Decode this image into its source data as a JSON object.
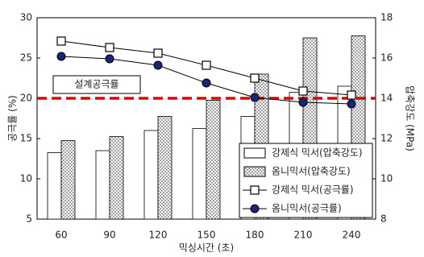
{
  "chart_data": {
    "type": "bar",
    "x_label": "믹싱시간 (초)",
    "y_label": "공극률 (%)",
    "y2_label": "압축강도 (MPa)",
    "categories": [
      "60",
      "90",
      "120",
      "150",
      "180",
      "210",
      "240"
    ],
    "ylim": [
      5,
      30
    ],
    "yticks": [
      5,
      10,
      15,
      20,
      25,
      30
    ],
    "y2lim": [
      8,
      18
    ],
    "y2ticks": [
      8,
      10,
      12,
      14,
      16,
      18
    ],
    "grid": false,
    "legend": "lower right",
    "series": [
      {
        "name": "강제식 믹서(압축강도)",
        "type": "bar",
        "axis": "y2",
        "color": "#ffffff",
        "values": [
          11.3,
          11.4,
          12.4,
          12.5,
          13.1,
          14.3,
          14.6
        ]
      },
      {
        "name": "옴니믹서(압축강도)",
        "type": "bar",
        "axis": "y2",
        "color": "#a0a0a0",
        "pattern": "hatch",
        "values": [
          11.9,
          12.1,
          13.1,
          13.9,
          15.2,
          17.0,
          17.1
        ]
      },
      {
        "name": "강제식 믹서(공극률)",
        "type": "line",
        "axis": "y",
        "color": "#000000",
        "marker": "square",
        "values": [
          27.1,
          26.3,
          25.6,
          24.1,
          22.5,
          20.9,
          20.4
        ]
      },
      {
        "name": "옴니믹서(공극률)",
        "type": "line",
        "axis": "y",
        "color": "#1a237e",
        "marker": "circle",
        "values": [
          25.2,
          24.9,
          24.1,
          21.9,
          20.1,
          19.5,
          19.3
        ]
      }
    ],
    "reference_line": {
      "value": 20,
      "color": "#e00000",
      "label": "설계공극률"
    }
  }
}
